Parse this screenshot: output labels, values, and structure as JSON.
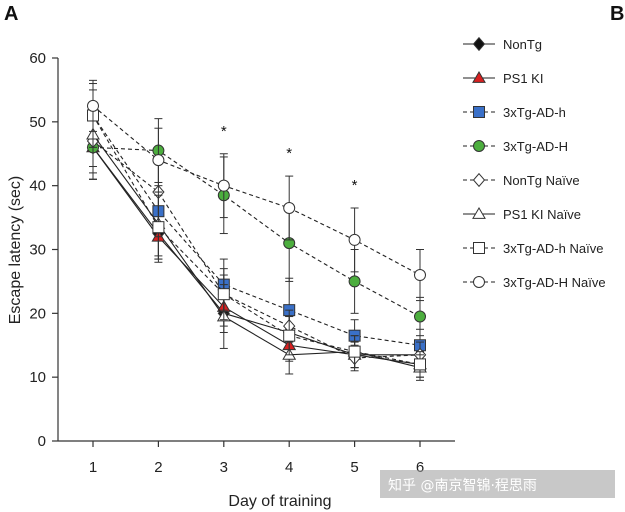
{
  "panel_labels": [
    "A",
    "B"
  ],
  "watermark": "知乎 @南京智锦·程思雨",
  "chart_data": {
    "type": "line",
    "xlabel": "Day of training",
    "ylabel": "Escape latency (sec)",
    "x": [
      1,
      2,
      3,
      4,
      5,
      6
    ],
    "x_ticks": [
      "1",
      "2",
      "3",
      "4",
      "5",
      "6"
    ],
    "ylim": [
      0,
      60
    ],
    "y_ticks": [
      "0",
      "10",
      "20",
      "30",
      "40",
      "50",
      "60"
    ],
    "grid": false,
    "legend_position": "right",
    "significance": [
      {
        "x": 3,
        "text": "*"
      },
      {
        "x": 4,
        "text": "*"
      },
      {
        "x": 5,
        "text": "*"
      }
    ],
    "series": [
      {
        "name": "NonTg",
        "marker": "diamond",
        "fill": "#111111",
        "line": "solid",
        "values": [
          46,
          32.5,
          20,
          17,
          13.5,
          13.5
        ],
        "error": [
          5,
          4,
          3,
          2.5,
          2,
          2
        ]
      },
      {
        "name": "PS1 KI",
        "marker": "triangle",
        "fill": "#d92020",
        "line": "solid",
        "values": [
          46,
          32,
          21,
          15,
          13.5,
          12
        ],
        "error": [
          5,
          4,
          3,
          2.5,
          2,
          2
        ]
      },
      {
        "name": "3xTg-AD-h",
        "marker": "square",
        "fill": "#3a70c8",
        "line": "dashed",
        "values": [
          51,
          36,
          24.5,
          20.5,
          16.5,
          15
        ],
        "error": [
          4,
          4,
          4,
          5,
          2.5,
          2.5
        ]
      },
      {
        "name": "3xTg-AD-H",
        "marker": "circle",
        "fill": "#4cae3e",
        "line": "dashed",
        "values": [
          46,
          45.5,
          38.5,
          31,
          25,
          19.5
        ],
        "error": [
          5,
          5,
          6,
          6,
          5,
          3
        ]
      },
      {
        "name": "NonTg Naïve",
        "marker": "diamond",
        "fill": "#ffffff",
        "line": "dashed",
        "values": [
          47,
          39,
          23,
          18,
          13,
          13.5
        ],
        "error": [
          5,
          5,
          3,
          2.5,
          2,
          2
        ]
      },
      {
        "name": "PS1 KI Naïve",
        "marker": "triangle",
        "fill": "#ffffff",
        "line": "solid",
        "values": [
          48,
          34,
          19.5,
          13.5,
          14,
          11.5
        ],
        "error": [
          5,
          5,
          5,
          3,
          2.5,
          2
        ]
      },
      {
        "name": "3xTg-AD-h Naïve",
        "marker": "square",
        "fill": "#ffffff",
        "line": "dashed",
        "values": [
          51,
          33.5,
          23,
          16.5,
          14,
          12
        ],
        "error": [
          5,
          5,
          4,
          3,
          2.5,
          2
        ]
      },
      {
        "name": "3xTg-AD-H Naïve",
        "marker": "circle",
        "fill": "#ffffff",
        "line": "dashed",
        "values": [
          52.5,
          44,
          40,
          36.5,
          31.5,
          26
        ],
        "error": [
          4,
          5,
          5,
          5,
          5,
          4
        ]
      }
    ]
  }
}
